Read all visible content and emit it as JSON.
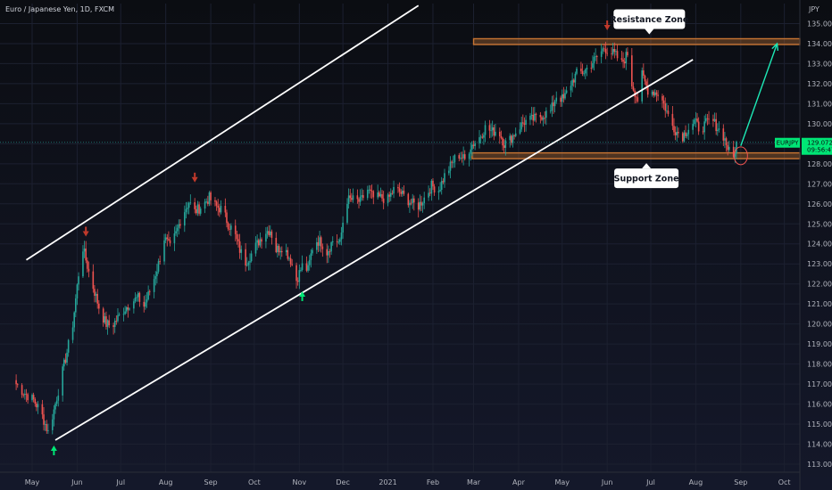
{
  "header": {
    "symbol_title": "Euro / Japanese Yen, 1D, FXCM"
  },
  "chart_data": {
    "type": "candlestick",
    "title": "Euro / Japanese Yen, 1D, FXCM",
    "currency_unit": "JPY",
    "ylim": [
      112.6,
      136.0
    ],
    "y_ticks": [
      113,
      114,
      115,
      116,
      117,
      118,
      119,
      120,
      121,
      122,
      123,
      124,
      125,
      126,
      127,
      128,
      129,
      130,
      131,
      132,
      133,
      134,
      135
    ],
    "y_tick_labels": [
      "113.000",
      "114.000",
      "115.000",
      "116.000",
      "117.000",
      "118.000",
      "119.000",
      "120.000",
      "121.000",
      "122.000",
      "123.000",
      "124.000",
      "125.000",
      "126.000",
      "127.000",
      "128.000",
      "129.000",
      "130.000",
      "131.000",
      "132.000",
      "133.000",
      "134.000",
      "135.000"
    ],
    "x_tick_labels": [
      "May",
      "Jun",
      "Jul",
      "Aug",
      "Sep",
      "Oct",
      "Nov",
      "Dec",
      "2021",
      "Feb",
      "Mar",
      "Apr",
      "May",
      "Jun",
      "Jul",
      "Aug",
      "Sep",
      "Oct"
    ],
    "x_tick_dates": [
      "2020-05-01",
      "2020-06-01",
      "2020-07-01",
      "2020-08-01",
      "2020-09-01",
      "2020-10-01",
      "2020-11-01",
      "2020-12-01",
      "2021-01-01",
      "2021-02-01",
      "2021-03-01",
      "2021-04-01",
      "2021-05-01",
      "2021-06-01",
      "2021-07-01",
      "2021-08-01",
      "2021-09-01",
      "2021-10-01"
    ],
    "current_price": 129.072,
    "current_price_label": "129.072",
    "countdown_label": "09:56:47",
    "symbol_tag": "EURJPY",
    "price_path": [
      {
        "date": "2020-04-20",
        "close": 117.0
      },
      {
        "date": "2020-04-25",
        "close": 116.6
      },
      {
        "date": "2020-05-02",
        "close": 116.2
      },
      {
        "date": "2020-05-07",
        "close": 115.6
      },
      {
        "date": "2020-05-12",
        "close": 114.6
      },
      {
        "date": "2020-05-16",
        "close": 115.7
      },
      {
        "date": "2020-05-20",
        "close": 117.0
      },
      {
        "date": "2020-05-25",
        "close": 118.6
      },
      {
        "date": "2020-05-29",
        "close": 120.0
      },
      {
        "date": "2020-06-02",
        "close": 122.5
      },
      {
        "date": "2020-06-05",
        "close": 123.8
      },
      {
        "date": "2020-06-09",
        "close": 122.6
      },
      {
        "date": "2020-06-13",
        "close": 121.6
      },
      {
        "date": "2020-06-17",
        "close": 120.6
      },
      {
        "date": "2020-06-21",
        "close": 120.0
      },
      {
        "date": "2020-06-25",
        "close": 119.9
      },
      {
        "date": "2020-06-29",
        "close": 120.3
      },
      {
        "date": "2020-07-03",
        "close": 120.7
      },
      {
        "date": "2020-07-08",
        "close": 121.1
      },
      {
        "date": "2020-07-13",
        "close": 121.3
      },
      {
        "date": "2020-07-17",
        "close": 120.9
      },
      {
        "date": "2020-07-22",
        "close": 121.8
      },
      {
        "date": "2020-07-27",
        "close": 123.0
      },
      {
        "date": "2020-07-31",
        "close": 124.3
      },
      {
        "date": "2020-08-04",
        "close": 123.8
      },
      {
        "date": "2020-08-08",
        "close": 124.5
      },
      {
        "date": "2020-08-12",
        "close": 125.4
      },
      {
        "date": "2020-08-17",
        "close": 126.1
      },
      {
        "date": "2020-08-21",
        "close": 125.6
      },
      {
        "date": "2020-08-26",
        "close": 125.9
      },
      {
        "date": "2020-08-31",
        "close": 126.3
      },
      {
        "date": "2020-09-04",
        "close": 125.9
      },
      {
        "date": "2020-09-09",
        "close": 125.7
      },
      {
        "date": "2020-09-13",
        "close": 125.0
      },
      {
        "date": "2020-09-17",
        "close": 124.6
      },
      {
        "date": "2020-09-21",
        "close": 123.7
      },
      {
        "date": "2020-09-25",
        "close": 123.1
      },
      {
        "date": "2020-09-29",
        "close": 123.5
      },
      {
        "date": "2020-10-03",
        "close": 124.0
      },
      {
        "date": "2020-10-08",
        "close": 124.6
      },
      {
        "date": "2020-10-12",
        "close": 124.7
      },
      {
        "date": "2020-10-16",
        "close": 123.7
      },
      {
        "date": "2020-10-21",
        "close": 123.9
      },
      {
        "date": "2020-10-26",
        "close": 123.2
      },
      {
        "date": "2020-10-30",
        "close": 122.2
      },
      {
        "date": "2020-11-03",
        "close": 122.9
      },
      {
        "date": "2020-11-07",
        "close": 122.7
      },
      {
        "date": "2020-11-11",
        "close": 124.2
      },
      {
        "date": "2020-11-16",
        "close": 124.1
      },
      {
        "date": "2020-11-20",
        "close": 123.6
      },
      {
        "date": "2020-11-25",
        "close": 124.3
      },
      {
        "date": "2020-11-29",
        "close": 124.0
      },
      {
        "date": "2020-12-03",
        "close": 126.2
      },
      {
        "date": "2020-12-08",
        "close": 126.2
      },
      {
        "date": "2020-12-13",
        "close": 126.1
      },
      {
        "date": "2020-12-18",
        "close": 126.7
      },
      {
        "date": "2020-12-22",
        "close": 126.3
      },
      {
        "date": "2020-12-28",
        "close": 126.3
      },
      {
        "date": "2021-01-01",
        "close": 126.2
      },
      {
        "date": "2021-01-05",
        "close": 126.7
      },
      {
        "date": "2021-01-09",
        "close": 126.6
      },
      {
        "date": "2021-01-13",
        "close": 126.3
      },
      {
        "date": "2021-01-18",
        "close": 126.0
      },
      {
        "date": "2021-01-22",
        "close": 125.9
      },
      {
        "date": "2021-01-27",
        "close": 126.4
      },
      {
        "date": "2021-01-31",
        "close": 126.9
      },
      {
        "date": "2021-02-05",
        "close": 126.7
      },
      {
        "date": "2021-02-09",
        "close": 127.4
      },
      {
        "date": "2021-02-14",
        "close": 128.0
      },
      {
        "date": "2021-02-18",
        "close": 128.5
      },
      {
        "date": "2021-02-23",
        "close": 128.2
      },
      {
        "date": "2021-02-27",
        "close": 128.9
      },
      {
        "date": "2021-03-04",
        "close": 129.2
      },
      {
        "date": "2021-03-09",
        "close": 129.8
      },
      {
        "date": "2021-03-14",
        "close": 129.6
      },
      {
        "date": "2021-03-18",
        "close": 129.7
      },
      {
        "date": "2021-03-22",
        "close": 129.0
      },
      {
        "date": "2021-03-26",
        "close": 129.2
      },
      {
        "date": "2021-03-31",
        "close": 129.7
      },
      {
        "date": "2021-04-05",
        "close": 130.1
      },
      {
        "date": "2021-04-10",
        "close": 130.2
      },
      {
        "date": "2021-04-14",
        "close": 130.3
      },
      {
        "date": "2021-04-19",
        "close": 130.5
      },
      {
        "date": "2021-04-23",
        "close": 130.6
      },
      {
        "date": "2021-04-27",
        "close": 131.4
      },
      {
        "date": "2021-05-02",
        "close": 131.2
      },
      {
        "date": "2021-05-06",
        "close": 131.9
      },
      {
        "date": "2021-05-11",
        "close": 132.5
      },
      {
        "date": "2021-05-16",
        "close": 132.6
      },
      {
        "date": "2021-05-21",
        "close": 133.0
      },
      {
        "date": "2021-05-26",
        "close": 133.4
      },
      {
        "date": "2021-05-30",
        "close": 133.8
      },
      {
        "date": "2021-06-03",
        "close": 133.6
      },
      {
        "date": "2021-06-07",
        "close": 133.4
      },
      {
        "date": "2021-06-11",
        "close": 133.0
      },
      {
        "date": "2021-06-15",
        "close": 133.5
      },
      {
        "date": "2021-06-18",
        "close": 132.0
      },
      {
        "date": "2021-06-22",
        "close": 131.2
      },
      {
        "date": "2021-06-25",
        "close": 132.4
      },
      {
        "date": "2021-06-29",
        "close": 131.7
      },
      {
        "date": "2021-07-03",
        "close": 131.6
      },
      {
        "date": "2021-07-07",
        "close": 131.5
      },
      {
        "date": "2021-07-11",
        "close": 130.8
      },
      {
        "date": "2021-07-15",
        "close": 130.0
      },
      {
        "date": "2021-07-19",
        "close": 129.6
      },
      {
        "date": "2021-07-23",
        "close": 129.4
      },
      {
        "date": "2021-07-27",
        "close": 129.8
      },
      {
        "date": "2021-07-31",
        "close": 130.1
      },
      {
        "date": "2021-08-04",
        "close": 129.7
      },
      {
        "date": "2021-08-08",
        "close": 130.0
      },
      {
        "date": "2021-08-12",
        "close": 130.2
      },
      {
        "date": "2021-08-16",
        "close": 129.8
      },
      {
        "date": "2021-08-20",
        "close": 129.4
      },
      {
        "date": "2021-08-24",
        "close": 128.6
      },
      {
        "date": "2021-08-27",
        "close": 128.3
      },
      {
        "date": "2021-08-29",
        "close": 129.1
      }
    ],
    "trend_lines": [
      {
        "name": "channel-upper",
        "from": {
          "date": "2020-04-27",
          "price": 123.2
        },
        "to": {
          "date": "2021-01-22",
          "price": 135.9
        }
      },
      {
        "name": "channel-lower",
        "from": {
          "date": "2020-05-17",
          "price": 114.2
        },
        "to": {
          "date": "2021-07-30",
          "price": 133.2
        }
      }
    ],
    "zones": [
      {
        "name": "resistance",
        "price_low": 134.0,
        "price_high": 134.2,
        "from_date": "2021-03-01",
        "label": "Resistance Zone"
      },
      {
        "name": "support",
        "price_low": 128.3,
        "price_high": 128.5,
        "from_date": "2021-02-28",
        "label": "Support Zone"
      }
    ],
    "projection": {
      "from": {
        "date": "2021-09-01",
        "price": 128.9
      },
      "to": {
        "date": "2021-09-26",
        "price": 134.0
      }
    },
    "highlight_circle": {
      "date": "2021-09-01",
      "price": 128.4
    },
    "markers": [
      {
        "type": "down",
        "date": "2020-06-07",
        "price": 124.5
      },
      {
        "type": "down",
        "date": "2020-08-21",
        "price": 127.2
      },
      {
        "type": "down",
        "date": "2021-06-01",
        "price": 134.8
      },
      {
        "type": "up",
        "date": "2020-05-16",
        "price": 113.8
      },
      {
        "type": "up",
        "date": "2020-11-03",
        "price": 121.5
      }
    ],
    "colors": {
      "up": "#26a69a",
      "bull_bright": "#00e676",
      "down": "#ef5350",
      "down_marker": "#c0392b",
      "zone": "#c87533",
      "trend_line": "#ffffff",
      "projection": "#1de9b6",
      "current_price_line": "#26a69a",
      "grid": "#1c2030"
    }
  }
}
